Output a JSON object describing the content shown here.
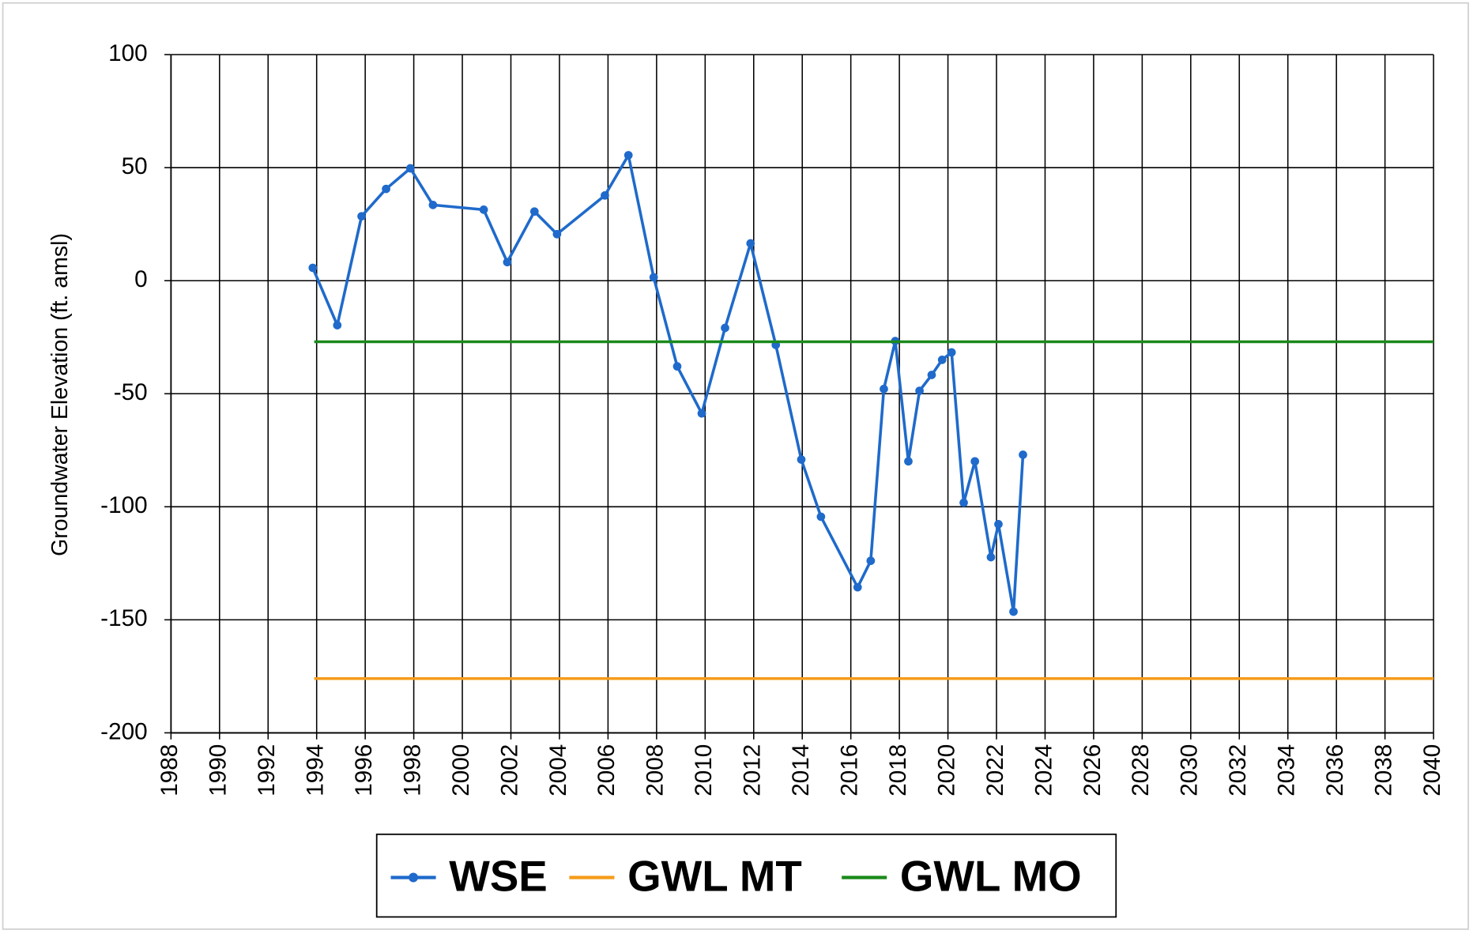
{
  "chart_data": {
    "type": "line",
    "y_label": "Groundwater Elevation (ft. amsl)",
    "xlim": [
      1988,
      2040
    ],
    "xticks": [
      1988,
      1990,
      1992,
      1994,
      1996,
      1998,
      2000,
      2002,
      2004,
      2006,
      2008,
      2010,
      2012,
      2014,
      2016,
      2018,
      2020,
      2022,
      2024,
      2026,
      2028,
      2030,
      2032,
      2034,
      2036,
      2038,
      2040
    ],
    "ylim": [
      -200,
      100
    ],
    "yticks": [
      -200,
      -150,
      -100,
      -50,
      0,
      50,
      100
    ],
    "grid": true,
    "legend": "bottom",
    "series": [
      {
        "name": "WSE",
        "color": "#1f6acb",
        "marker": true,
        "x": [
          1993.84,
          1994.85,
          1995.85,
          1996.86,
          1997.86,
          1998.79,
          2000.88,
          2001.85,
          2002.97,
          2003.9,
          2005.87,
          2006.84,
          2007.88,
          2008.85,
          2009.86,
          2010.82,
          2011.87,
          2012.91,
          2013.96,
          2014.77,
          2016.28,
          2016.82,
          2017.36,
          2017.83,
          2018.37,
          2018.83,
          2019.33,
          2019.76,
          2020.15,
          2020.65,
          2021.11,
          2021.77,
          2022.08,
          2022.7,
          2023.09
        ],
        "values": [
          5.7,
          -19.7,
          28.5,
          40.6,
          49.7,
          33.5,
          31.4,
          8.2,
          30.6,
          20.6,
          37.7,
          55.5,
          1.5,
          -37.9,
          -58.7,
          -20.9,
          16.5,
          -28.4,
          -79.1,
          -104.4,
          -135.6,
          -123.9,
          -47.9,
          -26.7,
          -79.9,
          -48.7,
          -41.7,
          -35.0,
          -31.7,
          -98.2,
          -79.9,
          -122.3,
          -107.7,
          -146.4,
          -77.0
        ]
      },
      {
        "name": "GWL MT",
        "color": "#f59c1a",
        "marker": false,
        "x": [
          1993.9,
          2040
        ],
        "values": [
          -176,
          -176
        ]
      },
      {
        "name": "GWL MO",
        "color": "#1a8a1a",
        "marker": false,
        "x": [
          1993.9,
          2040
        ],
        "values": [
          -27,
          -27
        ]
      }
    ]
  }
}
